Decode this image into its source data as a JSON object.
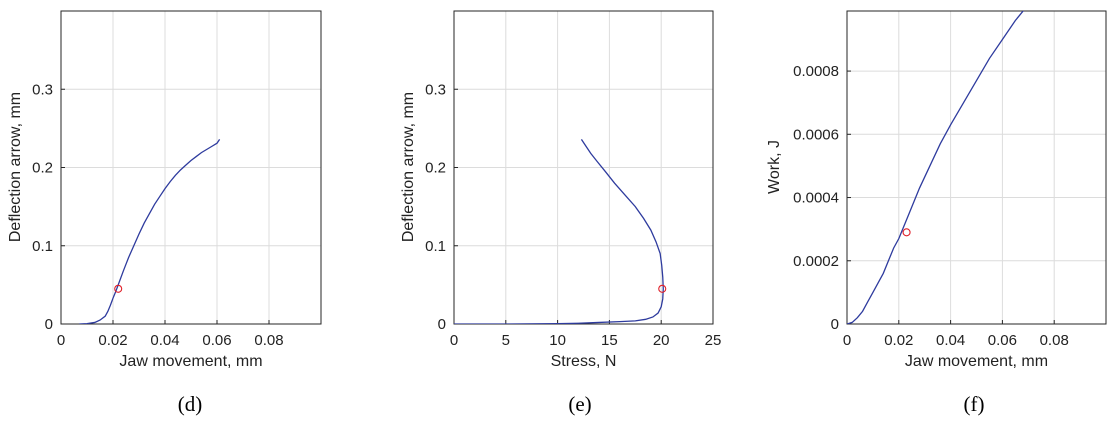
{
  "colors": {
    "line": "#2e3b9e",
    "marker": "#e0202a",
    "grid": "#dcdcdc",
    "axis": "#262626"
  },
  "chart_data": [
    {
      "type": "line",
      "caption": "(d)",
      "xlabel": "Jaw movement, mm",
      "ylabel": "Deflection arrow, mm",
      "xlim": [
        0,
        0.1
      ],
      "ylim": [
        0,
        0.4
      ],
      "xticks": [
        0,
        0.02,
        0.04,
        0.06,
        0.08
      ],
      "xtick_labels": [
        "0",
        "0.02",
        "0.04",
        "0.06",
        "0.08"
      ],
      "yticks": [
        0,
        0.1,
        0.2,
        0.3
      ],
      "ytick_labels": [
        "0",
        "0.1",
        "0.2",
        "0.3"
      ],
      "grid": true,
      "series": [
        {
          "x": [
            0.007,
            0.01,
            0.013,
            0.015,
            0.017,
            0.018,
            0.019,
            0.02,
            0.021,
            0.022,
            0.024,
            0.026,
            0.028,
            0.03,
            0.032,
            0.034,
            0.036,
            0.038,
            0.04,
            0.042,
            0.044,
            0.046,
            0.048,
            0.05,
            0.052,
            0.054,
            0.056,
            0.058,
            0.06,
            0.061
          ],
          "y": [
            0.0,
            0.0005,
            0.002,
            0.005,
            0.01,
            0.016,
            0.024,
            0.033,
            0.041,
            0.05,
            0.068,
            0.085,
            0.1,
            0.115,
            0.129,
            0.141,
            0.153,
            0.163,
            0.173,
            0.182,
            0.19,
            0.197,
            0.203,
            0.209,
            0.214,
            0.219,
            0.223,
            0.227,
            0.231,
            0.236
          ]
        }
      ],
      "markers": [
        {
          "x": 0.022,
          "y": 0.045
        }
      ]
    },
    {
      "type": "line",
      "caption": "(e)",
      "xlabel": "Stress, N",
      "ylabel": "Deflection arrow, mm",
      "xlim": [
        0,
        25
      ],
      "ylim": [
        0,
        0.4
      ],
      "xticks": [
        0,
        5,
        10,
        15,
        20,
        25
      ],
      "xtick_labels": [
        "0",
        "5",
        "10",
        "15",
        "20",
        "25"
      ],
      "yticks": [
        0,
        0.1,
        0.2,
        0.3
      ],
      "ytick_labels": [
        "0",
        "0.1",
        "0.2",
        "0.3"
      ],
      "grid": true,
      "series": [
        {
          "x": [
            0,
            5,
            10,
            12,
            14,
            16,
            17.5,
            18.5,
            19.2,
            19.7,
            20.0,
            20.15,
            20.2,
            20.15,
            20.05,
            19.9,
            19.5,
            19.0,
            18.3,
            17.5,
            16.5,
            15.5,
            14.6,
            13.8,
            13.2,
            12.7,
            12.3
          ],
          "y": [
            0,
            0,
            0.0005,
            0.001,
            0.002,
            0.003,
            0.004,
            0.006,
            0.009,
            0.014,
            0.022,
            0.032,
            0.045,
            0.06,
            0.075,
            0.09,
            0.105,
            0.12,
            0.135,
            0.15,
            0.165,
            0.18,
            0.195,
            0.208,
            0.218,
            0.228,
            0.236
          ]
        }
      ],
      "markers": [
        {
          "x": 20.1,
          "y": 0.045
        }
      ]
    },
    {
      "type": "line",
      "caption": "(f)",
      "xlabel": "Jaw movement, mm",
      "ylabel": "Work, J",
      "xlim": [
        0,
        0.1
      ],
      "ylim": [
        0,
        0.00099
      ],
      "xticks": [
        0,
        0.02,
        0.04,
        0.06,
        0.08
      ],
      "xtick_labels": [
        "0",
        "0.02",
        "0.04",
        "0.06",
        "0.08"
      ],
      "yticks": [
        0,
        0.0002,
        0.0004,
        0.0006,
        0.0008
      ],
      "ytick_labels": [
        "0",
        "0.0002",
        "0.0004",
        "0.0006",
        "0.0008"
      ],
      "grid": true,
      "series": [
        {
          "x": [
            0,
            0.002,
            0.004,
            0.006,
            0.008,
            0.01,
            0.012,
            0.014,
            0.016,
            0.018,
            0.02,
            0.022,
            0.024,
            0.028,
            0.032,
            0.036,
            0.04,
            0.045,
            0.05,
            0.055,
            0.06,
            0.065,
            0.069
          ],
          "y": [
            0,
            5e-06,
            2e-05,
            4e-05,
            7e-05,
            0.0001,
            0.00013,
            0.00016,
            0.0002,
            0.00024,
            0.00027,
            0.00031,
            0.00035,
            0.00043,
            0.0005,
            0.00057,
            0.00063,
            0.0007,
            0.00077,
            0.00084,
            0.0009,
            0.00096,
            0.001
          ]
        }
      ],
      "markers": [
        {
          "x": 0.023,
          "y": 0.00029
        }
      ]
    }
  ]
}
